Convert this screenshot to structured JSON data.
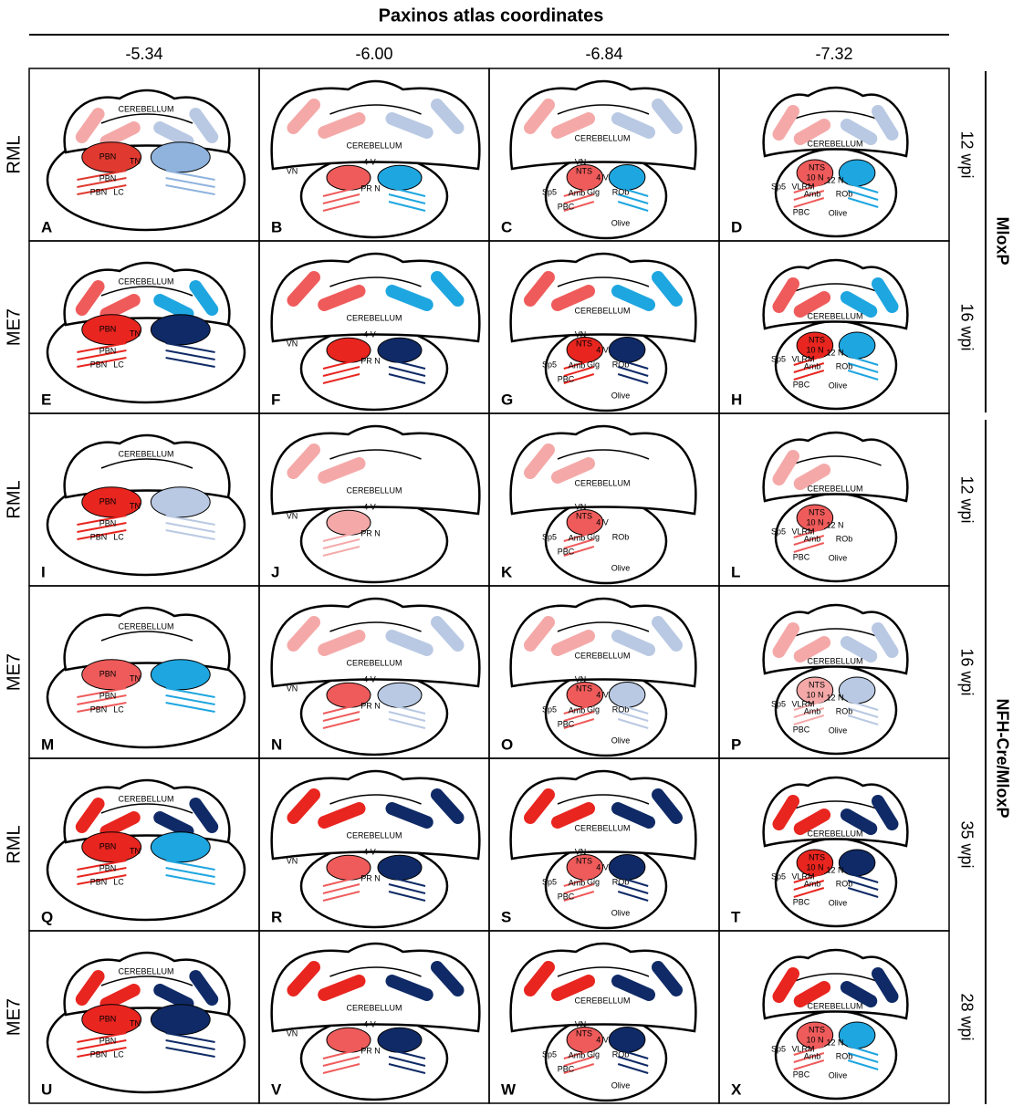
{
  "header": {
    "title": "Paxinos atlas coordinates",
    "columns": [
      "-5.34",
      "-6.00",
      "-6.84",
      "-7.32"
    ]
  },
  "atlas_labels": [
    [
      "CEREBELLUM",
      "PBN",
      "TN",
      "PBN",
      "PBN",
      "LC"
    ],
    [
      "CEREBELLUM",
      "VN",
      "4 V",
      "PR N"
    ],
    [
      "CEREBELLUM",
      "VN",
      "NTS",
      "4 V",
      "Sp5",
      "Amb",
      "Gig",
      "ROb",
      "PBC",
      "Olive"
    ],
    [
      "CEREBELLUM",
      "NTS",
      "10 N",
      "12 N",
      "Sp5",
      "VLRM",
      "Amb",
      "ROb",
      "PBC",
      "Olive"
    ]
  ],
  "rows": [
    {
      "label": "RML",
      "time": "12 wpi"
    },
    {
      "label": "ME7",
      "time": "16 wpi"
    },
    {
      "label": "RML",
      "time": "12 wpi"
    },
    {
      "label": "ME7",
      "time": "16 wpi"
    },
    {
      "label": "RML",
      "time": "35 wpi"
    },
    {
      "label": "ME7",
      "time": "28 wpi"
    }
  ],
  "groups": [
    "MloxP",
    "NFH-Cre/MloxP"
  ],
  "panels": [
    {
      "letter": "A",
      "colors": [
        "#f4a9a8",
        "#b9c9e3",
        "#e03a30",
        "#8fb3dd"
      ]
    },
    {
      "letter": "B",
      "colors": [
        "#f4a9a8",
        "#b9c9e3",
        "#ef5b5b",
        "#1ea6e0"
      ]
    },
    {
      "letter": "C",
      "colors": [
        "#f4a9a8",
        "#b9c9e3",
        "#ef5b5b",
        "#1ea6e0"
      ]
    },
    {
      "letter": "D",
      "colors": [
        "#f4a9a8",
        "#b9c9e3",
        "#ef5b5b",
        "#1ea6e0"
      ]
    },
    {
      "letter": "E",
      "colors": [
        "#ef5b5b",
        "#1ea6e0",
        "#e8251f",
        "#0f2a66"
      ]
    },
    {
      "letter": "F",
      "colors": [
        "#ef5b5b",
        "#1ea6e0",
        "#e8251f",
        "#0f2a66"
      ]
    },
    {
      "letter": "G",
      "colors": [
        "#ef5b5b",
        "#1ea6e0",
        "#e8251f",
        "#0f2a66"
      ]
    },
    {
      "letter": "H",
      "colors": [
        "#ef5b5b",
        "#1ea6e0",
        "#e8251f",
        "#1ea6e0"
      ]
    },
    {
      "letter": "I",
      "colors": [
        null,
        null,
        "#e8251f",
        "#b9c9e3"
      ]
    },
    {
      "letter": "J",
      "colors": [
        "#f4a9a8",
        null,
        "#f4a9a8",
        null
      ]
    },
    {
      "letter": "K",
      "colors": [
        "#f4a9a8",
        null,
        "#ef5b5b",
        null
      ]
    },
    {
      "letter": "L",
      "colors": [
        "#f4a9a8",
        null,
        "#ef5b5b",
        null
      ]
    },
    {
      "letter": "M",
      "colors": [
        null,
        null,
        "#ef5b5b",
        "#1ea6e0"
      ]
    },
    {
      "letter": "N",
      "colors": [
        "#f4a9a8",
        "#b9c9e3",
        "#ef5b5b",
        "#b9c9e3"
      ]
    },
    {
      "letter": "O",
      "colors": [
        "#f4a9a8",
        "#b9c9e3",
        "#ef5b5b",
        "#b9c9e3"
      ]
    },
    {
      "letter": "P",
      "colors": [
        "#f4a9a8",
        "#b9c9e3",
        "#f4a9a8",
        "#b9c9e3"
      ]
    },
    {
      "letter": "Q",
      "colors": [
        "#e8251f",
        "#0f2a66",
        "#e8251f",
        "#1ea6e0"
      ]
    },
    {
      "letter": "R",
      "colors": [
        "#e8251f",
        "#0f2a66",
        "#ef5b5b",
        "#0f2a66"
      ]
    },
    {
      "letter": "S",
      "colors": [
        "#e8251f",
        "#0f2a66",
        "#ef5b5b",
        "#0f2a66"
      ]
    },
    {
      "letter": "T",
      "colors": [
        "#e8251f",
        "#0f2a66",
        "#e8251f",
        "#0f2a66"
      ]
    },
    {
      "letter": "U",
      "colors": [
        "#e8251f",
        "#0f2a66",
        "#e8251f",
        "#0f2a66"
      ]
    },
    {
      "letter": "V",
      "colors": [
        "#e8251f",
        "#0f2a66",
        "#ef5b5b",
        "#0f2a66"
      ]
    },
    {
      "letter": "W",
      "colors": [
        "#e8251f",
        "#0f2a66",
        "#ef5b5b",
        "#0f2a66"
      ]
    },
    {
      "letter": "X",
      "colors": [
        "#e8251f",
        "#0f2a66",
        "#ef5b5b",
        "#1ea6e0"
      ]
    }
  ]
}
